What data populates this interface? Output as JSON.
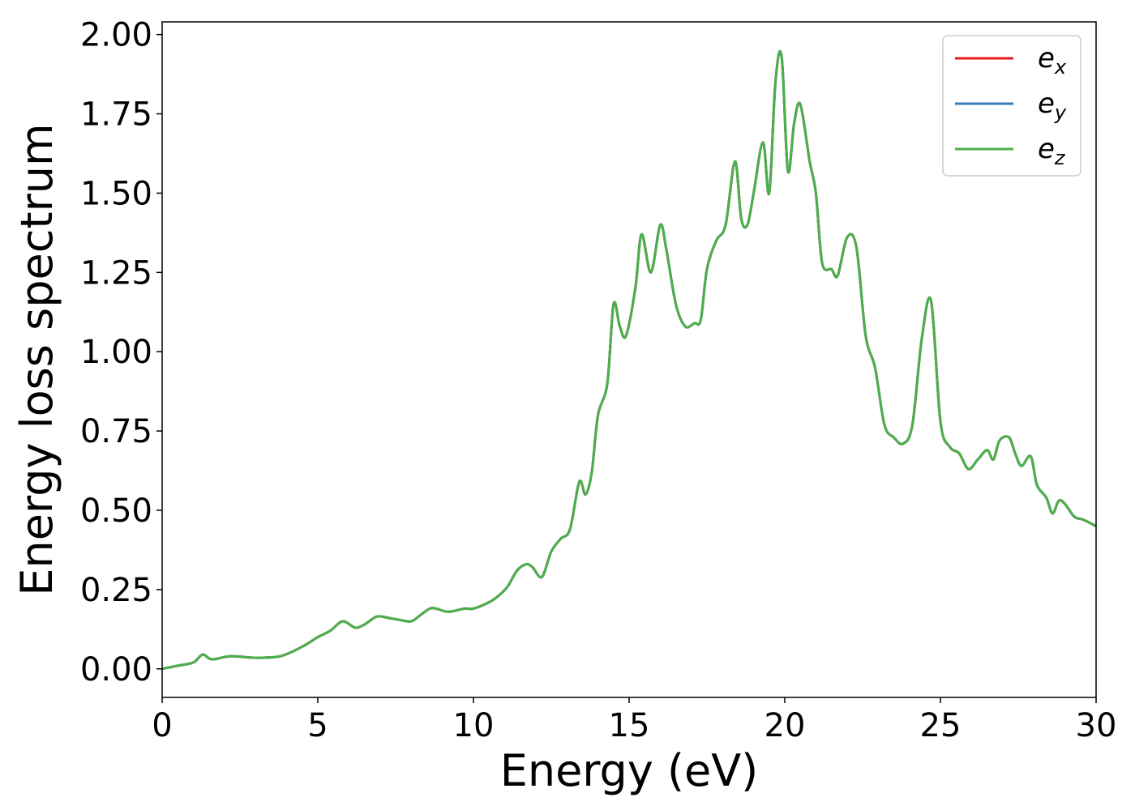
{
  "chart_data": {
    "type": "line",
    "xlabel": "Energy (eV)",
    "ylabel": "Energy loss spectrum",
    "xlim": [
      0,
      30
    ],
    "ylim": [
      -0.09,
      2.04
    ],
    "xticks": [
      0,
      5,
      10,
      15,
      20,
      25,
      30
    ],
    "xtick_labels": [
      "0",
      "5",
      "10",
      "15",
      "20",
      "25",
      "30"
    ],
    "yticks": [
      0.0,
      0.25,
      0.5,
      0.75,
      1.0,
      1.25,
      1.5,
      1.75,
      2.0
    ],
    "ytick_labels": [
      "0.00",
      "0.25",
      "0.50",
      "0.75",
      "1.00",
      "1.25",
      "1.50",
      "1.75",
      "2.00"
    ],
    "grid": false,
    "legend_position": "top-right",
    "series": [
      {
        "name": "e",
        "subscript": "x",
        "color": "#e41a1c"
      },
      {
        "name": "e",
        "subscript": "y",
        "color": "#377eb8"
      },
      {
        "name": "e",
        "subscript": "z",
        "color": "#4daf4a"
      }
    ],
    "x": [
      0,
      0.5,
      1.0,
      1.3,
      1.6,
      2.2,
      3.0,
      3.8,
      4.5,
      5.0,
      5.4,
      5.8,
      6.2,
      6.5,
      6.9,
      7.3,
      7.6,
      8.0,
      8.3,
      8.6,
      8.8,
      9.2,
      9.7,
      10.0,
      10.5,
      10.8,
      11.1,
      11.4,
      11.7,
      11.9,
      12.2,
      12.5,
      12.8,
      13.1,
      13.4,
      13.6,
      13.8,
      14.0,
      14.3,
      14.5,
      14.7,
      14.9,
      15.2,
      15.4,
      15.7,
      16.0,
      16.2,
      16.5,
      16.8,
      17.1,
      17.3,
      17.5,
      17.8,
      18.1,
      18.4,
      18.6,
      18.8,
      19.0,
      19.3,
      19.5,
      19.7,
      19.9,
      20.1,
      20.3,
      20.5,
      20.8,
      21.0,
      21.2,
      21.5,
      21.7,
      22.0,
      22.3,
      22.6,
      22.9,
      23.2,
      23.5,
      23.8,
      24.1,
      24.4,
      24.7,
      25.0,
      25.3,
      25.6,
      25.9,
      26.2,
      26.5,
      26.7,
      26.9,
      27.2,
      27.4,
      27.6,
      27.9,
      28.1,
      28.4,
      28.6,
      28.8,
      29.0,
      29.3,
      29.6,
      30.0
    ],
    "y": [
      0.0,
      0.01,
      0.02,
      0.045,
      0.03,
      0.04,
      0.035,
      0.04,
      0.07,
      0.1,
      0.12,
      0.15,
      0.13,
      0.14,
      0.165,
      0.16,
      0.155,
      0.15,
      0.17,
      0.19,
      0.19,
      0.18,
      0.19,
      0.19,
      0.21,
      0.23,
      0.26,
      0.31,
      0.33,
      0.32,
      0.29,
      0.37,
      0.41,
      0.44,
      0.59,
      0.55,
      0.62,
      0.8,
      0.9,
      1.15,
      1.08,
      1.05,
      1.2,
      1.37,
      1.25,
      1.4,
      1.32,
      1.15,
      1.08,
      1.09,
      1.1,
      1.26,
      1.35,
      1.4,
      1.6,
      1.42,
      1.4,
      1.5,
      1.66,
      1.5,
      1.85,
      1.93,
      1.57,
      1.72,
      1.78,
      1.6,
      1.5,
      1.28,
      1.26,
      1.24,
      1.36,
      1.33,
      1.05,
      0.95,
      0.77,
      0.73,
      0.71,
      0.77,
      1.04,
      1.16,
      0.78,
      0.7,
      0.68,
      0.63,
      0.66,
      0.69,
      0.66,
      0.72,
      0.73,
      0.68,
      0.64,
      0.67,
      0.58,
      0.54,
      0.49,
      0.53,
      0.52,
      0.48,
      0.47,
      0.45
    ]
  }
}
